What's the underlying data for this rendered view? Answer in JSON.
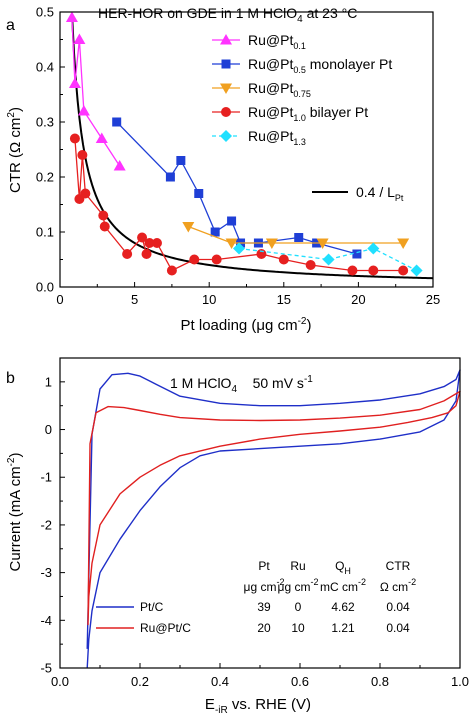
{
  "chart_data": [
    {
      "panel_label": "a",
      "type": "scatter",
      "title": "HER-HOR on GDE in 1 M HClO",
      "title_sub": "4",
      "title_tail": " at 23 °C",
      "xlabel": "Pt loading (μg cm",
      "xlabel_sup": "-2",
      "xlabel_tail": ")",
      "ylabel": "CTR (Ω cm",
      "ylabel_sup": "2",
      "ylabel_tail": ")",
      "xlim": [
        0,
        25
      ],
      "ylim": [
        0,
        0.5
      ],
      "xticks": [
        "0",
        "5",
        "10",
        "15",
        "20",
        "25"
      ],
      "yticks": [
        "0.0",
        "0.1",
        "0.2",
        "0.3",
        "0.4",
        "0.5"
      ],
      "xtick_values": [
        0,
        5,
        10,
        15,
        20,
        25
      ],
      "ytick_values": [
        0,
        0.1,
        0.2,
        0.3,
        0.4,
        0.5
      ],
      "grid": false,
      "legend_placement": "top-right",
      "series": [
        {
          "name": "Ru@Pt",
          "sub": "0.1",
          "suffix": "",
          "color": "#ff33ff",
          "marker": "triangle-up",
          "dashed": false,
          "x": [
            0.8,
            1.0,
            1.3,
            1.6,
            2.8,
            4.0
          ],
          "y": [
            0.49,
            0.37,
            0.45,
            0.32,
            0.27,
            0.22
          ]
        },
        {
          "name": "Ru@Pt",
          "sub": "0.5",
          "suffix": " monolayer Pt",
          "color": "#1f3fd6",
          "marker": "square",
          "dashed": false,
          "x": [
            3.8,
            7.4,
            8.1,
            9.3,
            10.4,
            11.5,
            12.1,
            13.3,
            16.0,
            17.2,
            19.9
          ],
          "y": [
            0.3,
            0.2,
            0.23,
            0.17,
            0.1,
            0.12,
            0.08,
            0.08,
            0.09,
            0.08,
            0.06
          ]
        },
        {
          "name": "Ru@Pt",
          "sub": "0.75",
          "suffix": "",
          "color": "#f0a020",
          "marker": "triangle-down",
          "dashed": false,
          "x": [
            8.6,
            11.5,
            14.2,
            17.6,
            23.0
          ],
          "y": [
            0.11,
            0.08,
            0.08,
            0.08,
            0.08
          ]
        },
        {
          "name": "Ru@Pt",
          "sub": "1.0",
          "suffix": " bilayer Pt",
          "color": "#e62020",
          "marker": "circle",
          "dashed": false,
          "x": [
            1.0,
            1.3,
            1.5,
            1.7,
            2.9,
            3.0,
            4.5,
            5.5,
            5.8,
            6.0,
            6.5,
            7.5,
            9.0,
            10.5,
            13.5,
            15.0,
            16.8,
            19.6,
            21.0,
            23.0
          ],
          "y": [
            0.27,
            0.16,
            0.24,
            0.17,
            0.13,
            0.11,
            0.06,
            0.09,
            0.06,
            0.08,
            0.08,
            0.03,
            0.05,
            0.05,
            0.06,
            0.05,
            0.04,
            0.03,
            0.03,
            0.03
          ]
        },
        {
          "name": "Ru@Pt",
          "sub": "1.3",
          "suffix": "",
          "color": "#20e0ff",
          "marker": "diamond",
          "dashed": true,
          "x": [
            12.0,
            18.0,
            21.0,
            23.9
          ],
          "y": [
            0.07,
            0.05,
            0.07,
            0.03
          ]
        }
      ],
      "fit": {
        "name": "0.4 / L",
        "sub": "Pt",
        "color": "#000000",
        "numerator": 0.4,
        "x_from": 0.82,
        "x_to": 25
      }
    },
    {
      "panel_label": "b",
      "type": "line",
      "annotation": "1 M HClO",
      "annotation_sub": "4",
      "annotation_tail": "    50 mV s",
      "annotation_sup": "-1",
      "xlabel": "E",
      "xlabel_sub": "-iR",
      "xlabel_tail": " vs. RHE (V)",
      "ylabel": "Current (mA cm",
      "ylabel_sup": "-2",
      "ylabel_tail": ")",
      "xlim": [
        0.0,
        1.0
      ],
      "ylim": [
        -5,
        1.5
      ],
      "xticks": [
        "0.0",
        "0.2",
        "0.4",
        "0.6",
        "0.8",
        "1.0"
      ],
      "yticks": [
        "-5",
        "-4",
        "-3",
        "-2",
        "-1",
        "0",
        "1"
      ],
      "xtick_values": [
        0.0,
        0.2,
        0.4,
        0.6,
        0.8,
        1.0
      ],
      "ytick_values": [
        -5,
        -4,
        -3,
        -2,
        -1,
        0,
        1
      ],
      "grid": false,
      "series": [
        {
          "name": "Pt/C",
          "color": "#1f2fc8",
          "x": [
            0.068,
            0.08,
            0.1,
            0.13,
            0.17,
            0.2,
            0.24,
            0.3,
            0.4,
            0.5,
            0.6,
            0.7,
            0.8,
            0.9,
            0.96,
            0.99,
            1.0,
            0.99,
            0.96,
            0.9,
            0.8,
            0.7,
            0.6,
            0.5,
            0.4,
            0.35,
            0.3,
            0.25,
            0.2,
            0.15,
            0.1,
            0.08,
            0.072,
            0.068
          ],
          "y": [
            -4.6,
            -0.1,
            0.85,
            1.15,
            1.18,
            1.12,
            0.95,
            0.7,
            0.55,
            0.5,
            0.5,
            0.55,
            0.62,
            0.75,
            0.9,
            1.05,
            1.25,
            0.6,
            0.2,
            -0.05,
            -0.2,
            -0.3,
            -0.35,
            -0.4,
            -0.45,
            -0.55,
            -0.8,
            -1.2,
            -1.7,
            -2.3,
            -3.0,
            -3.8,
            -4.4,
            -5.0
          ]
        },
        {
          "name": "Ru@Pt/C",
          "color": "#e02020",
          "x": [
            0.07,
            0.075,
            0.09,
            0.12,
            0.16,
            0.2,
            0.25,
            0.3,
            0.4,
            0.5,
            0.6,
            0.7,
            0.8,
            0.9,
            0.96,
            1.0,
            0.99,
            0.97,
            0.93,
            0.87,
            0.8,
            0.7,
            0.6,
            0.5,
            0.4,
            0.3,
            0.25,
            0.2,
            0.15,
            0.1,
            0.08,
            0.072,
            0.07
          ],
          "y": [
            -4.1,
            -0.3,
            0.35,
            0.48,
            0.46,
            0.4,
            0.32,
            0.25,
            0.2,
            0.19,
            0.2,
            0.24,
            0.3,
            0.42,
            0.6,
            0.8,
            0.5,
            0.35,
            0.25,
            0.15,
            0.05,
            -0.03,
            -0.1,
            -0.2,
            -0.35,
            -0.55,
            -0.75,
            -1.0,
            -1.35,
            -2.0,
            -2.8,
            -3.5,
            -4.1
          ]
        }
      ],
      "table": {
        "headers": [
          "Pt",
          "Ru",
          "Q",
          "CTR"
        ],
        "header_subs": [
          "",
          "",
          "H",
          ""
        ],
        "units": [
          "μg cm",
          "μg cm",
          "mC cm",
          "Ω cm"
        ],
        "unit_sups": [
          "-2",
          "-2",
          "-2",
          "-2"
        ],
        "rows": [
          {
            "label": "Pt/C",
            "cells": [
              "39",
              "0",
              "4.62",
              "0.04"
            ]
          },
          {
            "label": "Ru@Pt/C",
            "cells": [
              "20",
              "10",
              "1.21",
              "0.04"
            ]
          }
        ]
      }
    }
  ]
}
